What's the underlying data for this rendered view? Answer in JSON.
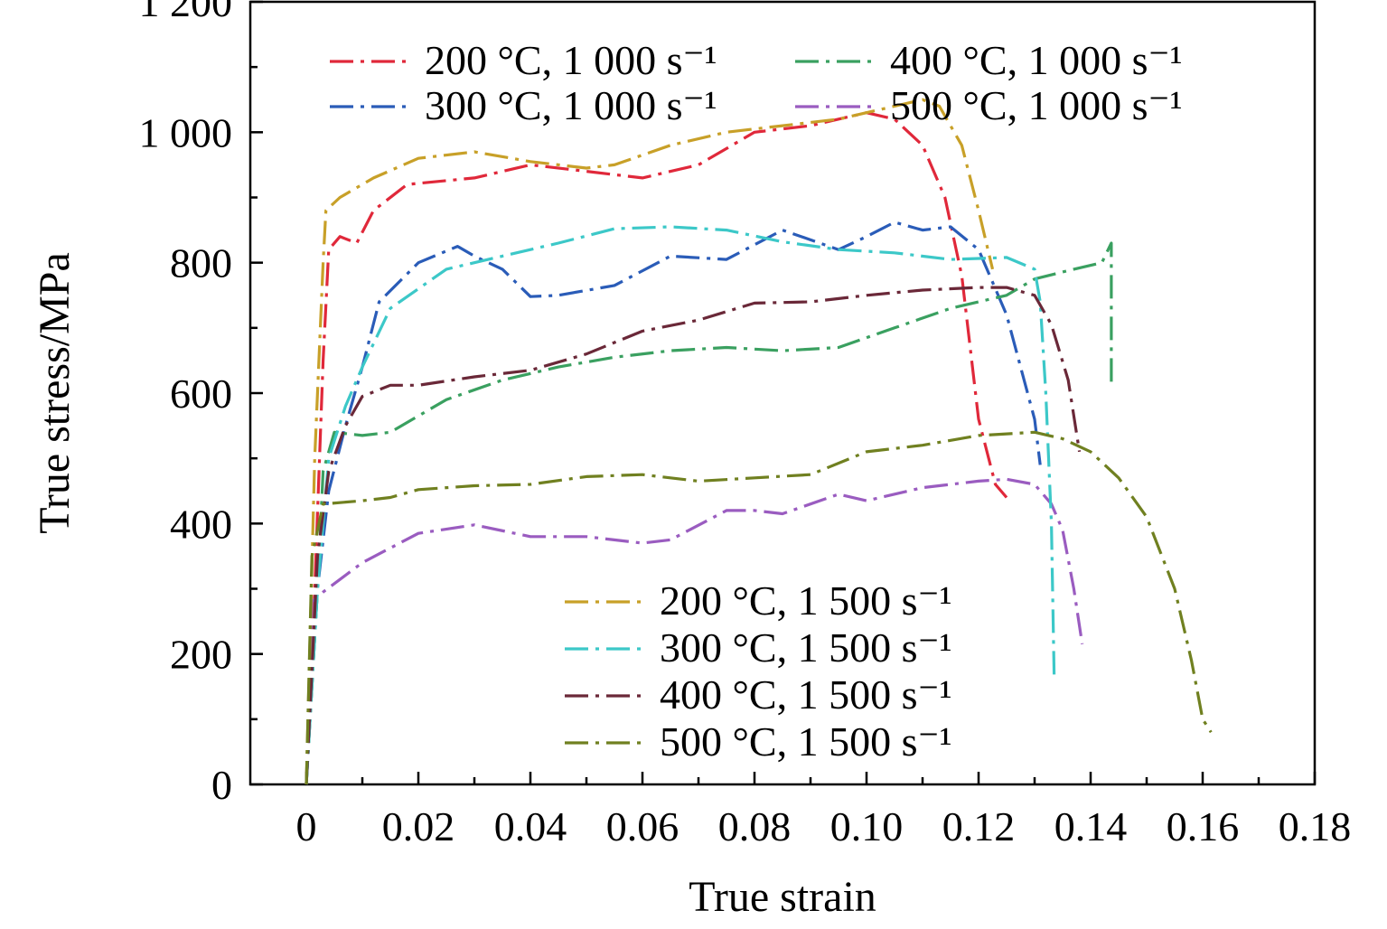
{
  "chart_data": {
    "type": "line",
    "xlabel": "True strain",
    "ylabel": "True stress/MPa",
    "xlim": [
      -0.01,
      0.18
    ],
    "ylim": [
      0,
      1200
    ],
    "x_ticks": [
      {
        "value": 0,
        "label": "0"
      },
      {
        "value": 0.02,
        "label": "0.02"
      },
      {
        "value": 0.04,
        "label": "0.04"
      },
      {
        "value": 0.06,
        "label": "0.06"
      },
      {
        "value": 0.08,
        "label": "0.08"
      },
      {
        "value": 0.1,
        "label": "0.10"
      },
      {
        "value": 0.12,
        "label": "0.12"
      },
      {
        "value": 0.14,
        "label": "0.14"
      },
      {
        "value": 0.16,
        "label": "0.16"
      },
      {
        "value": 0.18,
        "label": "0.18"
      }
    ],
    "y_ticks": [
      {
        "value": 0,
        "label": "0"
      },
      {
        "value": 200,
        "label": "200"
      },
      {
        "value": 400,
        "label": "400"
      },
      {
        "value": 600,
        "label": "600"
      },
      {
        "value": 800,
        "label": "800"
      },
      {
        "value": 1000,
        "label": "1 000"
      },
      {
        "value": 1200,
        "label": "1 200"
      }
    ],
    "grid": false,
    "legends": [
      {
        "position": "top",
        "columns": 2,
        "series": [
          0,
          2,
          1,
          3
        ]
      },
      {
        "position": "bottom-center",
        "columns": 1,
        "series": [
          4,
          5,
          6,
          7
        ]
      }
    ],
    "series": [
      {
        "name": "200 °C, 1 000 s⁻¹",
        "color": "#e0283a",
        "points": [
          [
            0,
            0
          ],
          [
            0.0015,
            300
          ],
          [
            0.003,
            650
          ],
          [
            0.004,
            820
          ],
          [
            0.006,
            840
          ],
          [
            0.009,
            830
          ],
          [
            0.012,
            880
          ],
          [
            0.018,
            920
          ],
          [
            0.03,
            930
          ],
          [
            0.04,
            950
          ],
          [
            0.05,
            940
          ],
          [
            0.06,
            930
          ],
          [
            0.07,
            950
          ],
          [
            0.08,
            1000
          ],
          [
            0.09,
            1010
          ],
          [
            0.1,
            1030
          ],
          [
            0.105,
            1020
          ],
          [
            0.11,
            980
          ],
          [
            0.114,
            900
          ],
          [
            0.117,
            780
          ],
          [
            0.12,
            560
          ],
          [
            0.123,
            460
          ],
          [
            0.125,
            440
          ]
        ]
      },
      {
        "name": "300 °C, 1 000 s⁻¹",
        "color": "#2a5cb8",
        "points": [
          [
            0,
            0
          ],
          [
            0.002,
            300
          ],
          [
            0.004,
            450
          ],
          [
            0.007,
            550
          ],
          [
            0.01,
            640
          ],
          [
            0.013,
            740
          ],
          [
            0.02,
            800
          ],
          [
            0.027,
            825
          ],
          [
            0.03,
            810
          ],
          [
            0.035,
            790
          ],
          [
            0.04,
            748
          ],
          [
            0.045,
            750
          ],
          [
            0.055,
            765
          ],
          [
            0.065,
            810
          ],
          [
            0.075,
            805
          ],
          [
            0.085,
            850
          ],
          [
            0.095,
            820
          ],
          [
            0.1,
            840
          ],
          [
            0.105,
            862
          ],
          [
            0.11,
            850
          ],
          [
            0.115,
            855
          ],
          [
            0.12,
            820
          ],
          [
            0.125,
            720
          ],
          [
            0.13,
            560
          ],
          [
            0.131,
            490
          ]
        ]
      },
      {
        "name": "400 °C, 1 000 s⁻¹",
        "color": "#3aa060",
        "points": [
          [
            0,
            0
          ],
          [
            0.002,
            300
          ],
          [
            0.003,
            480
          ],
          [
            0.005,
            540
          ],
          [
            0.01,
            535
          ],
          [
            0.015,
            540
          ],
          [
            0.025,
            590
          ],
          [
            0.035,
            620
          ],
          [
            0.045,
            640
          ],
          [
            0.055,
            655
          ],
          [
            0.065,
            665
          ],
          [
            0.075,
            670
          ],
          [
            0.085,
            665
          ],
          [
            0.095,
            670
          ],
          [
            0.105,
            700
          ],
          [
            0.115,
            730
          ],
          [
            0.125,
            750
          ],
          [
            0.13,
            775
          ],
          [
            0.137,
            790
          ],
          [
            0.142,
            800
          ],
          [
            0.1437,
            830
          ],
          [
            0.1437,
            610
          ]
        ]
      },
      {
        "name": "500 °C, 1 000 s⁻¹",
        "color": "#9a5cc0",
        "points": [
          [
            0,
            0
          ],
          [
            0.001,
            280
          ],
          [
            0.003,
            295
          ],
          [
            0.01,
            340
          ],
          [
            0.02,
            385
          ],
          [
            0.03,
            398
          ],
          [
            0.04,
            380
          ],
          [
            0.05,
            380
          ],
          [
            0.06,
            370
          ],
          [
            0.065,
            375
          ],
          [
            0.075,
            420
          ],
          [
            0.08,
            420
          ],
          [
            0.085,
            415
          ],
          [
            0.095,
            445
          ],
          [
            0.1,
            435
          ],
          [
            0.11,
            455
          ],
          [
            0.12,
            465
          ],
          [
            0.125,
            468
          ],
          [
            0.13,
            460
          ],
          [
            0.133,
            430
          ],
          [
            0.135,
            390
          ],
          [
            0.137,
            300
          ],
          [
            0.1385,
            215
          ]
        ]
      },
      {
        "name": "200 °C, 1 500 s⁻¹",
        "color": "#c8a028",
        "points": [
          [
            0,
            0
          ],
          [
            0.0015,
            500
          ],
          [
            0.003,
            800
          ],
          [
            0.0035,
            880
          ],
          [
            0.006,
            900
          ],
          [
            0.012,
            930
          ],
          [
            0.02,
            960
          ],
          [
            0.03,
            970
          ],
          [
            0.04,
            955
          ],
          [
            0.05,
            945
          ],
          [
            0.055,
            950
          ],
          [
            0.065,
            980
          ],
          [
            0.075,
            1000
          ],
          [
            0.085,
            1010
          ],
          [
            0.095,
            1020
          ],
          [
            0.105,
            1040
          ],
          [
            0.11,
            1050
          ],
          [
            0.113,
            1040
          ],
          [
            0.117,
            980
          ],
          [
            0.12,
            880
          ],
          [
            0.1225,
            790
          ]
        ]
      },
      {
        "name": "300 °C, 1 500 s⁻¹",
        "color": "#3cc8c8",
        "points": [
          [
            0,
            0
          ],
          [
            0.002,
            300
          ],
          [
            0.004,
            500
          ],
          [
            0.007,
            580
          ],
          [
            0.01,
            640
          ],
          [
            0.015,
            730
          ],
          [
            0.025,
            790
          ],
          [
            0.035,
            810
          ],
          [
            0.045,
            830
          ],
          [
            0.055,
            852
          ],
          [
            0.065,
            855
          ],
          [
            0.075,
            850
          ],
          [
            0.085,
            832
          ],
          [
            0.095,
            820
          ],
          [
            0.105,
            815
          ],
          [
            0.115,
            805
          ],
          [
            0.125,
            808
          ],
          [
            0.13,
            790
          ],
          [
            0.131,
            740
          ],
          [
            0.132,
            600
          ],
          [
            0.133,
            400
          ],
          [
            0.1335,
            160
          ]
        ]
      },
      {
        "name": "400 °C, 1 500 s⁻¹",
        "color": "#6a2838",
        "points": [
          [
            0,
            0
          ],
          [
            0.002,
            350
          ],
          [
            0.004,
            480
          ],
          [
            0.007,
            550
          ],
          [
            0.01,
            595
          ],
          [
            0.015,
            612
          ],
          [
            0.02,
            612
          ],
          [
            0.03,
            625
          ],
          [
            0.04,
            635
          ],
          [
            0.05,
            660
          ],
          [
            0.06,
            695
          ],
          [
            0.07,
            712
          ],
          [
            0.08,
            738
          ],
          [
            0.09,
            740
          ],
          [
            0.1,
            750
          ],
          [
            0.11,
            758
          ],
          [
            0.12,
            762
          ],
          [
            0.125,
            762
          ],
          [
            0.13,
            750
          ],
          [
            0.133,
            705
          ],
          [
            0.136,
            620
          ],
          [
            0.138,
            510
          ]
        ]
      },
      {
        "name": "500 °C, 1 500 s⁻¹",
        "color": "#708020",
        "points": [
          [
            0,
            0
          ],
          [
            0.001,
            350
          ],
          [
            0.003,
            430
          ],
          [
            0.01,
            435
          ],
          [
            0.015,
            440
          ],
          [
            0.02,
            452
          ],
          [
            0.03,
            458
          ],
          [
            0.04,
            460
          ],
          [
            0.05,
            472
          ],
          [
            0.06,
            475
          ],
          [
            0.07,
            465
          ],
          [
            0.08,
            470
          ],
          [
            0.09,
            475
          ],
          [
            0.1,
            510
          ],
          [
            0.11,
            520
          ],
          [
            0.12,
            535
          ],
          [
            0.13,
            540
          ],
          [
            0.135,
            530
          ],
          [
            0.14,
            510
          ],
          [
            0.145,
            470
          ],
          [
            0.15,
            410
          ],
          [
            0.155,
            300
          ],
          [
            0.158,
            190
          ],
          [
            0.16,
            100
          ],
          [
            0.1615,
            80
          ]
        ]
      }
    ]
  }
}
